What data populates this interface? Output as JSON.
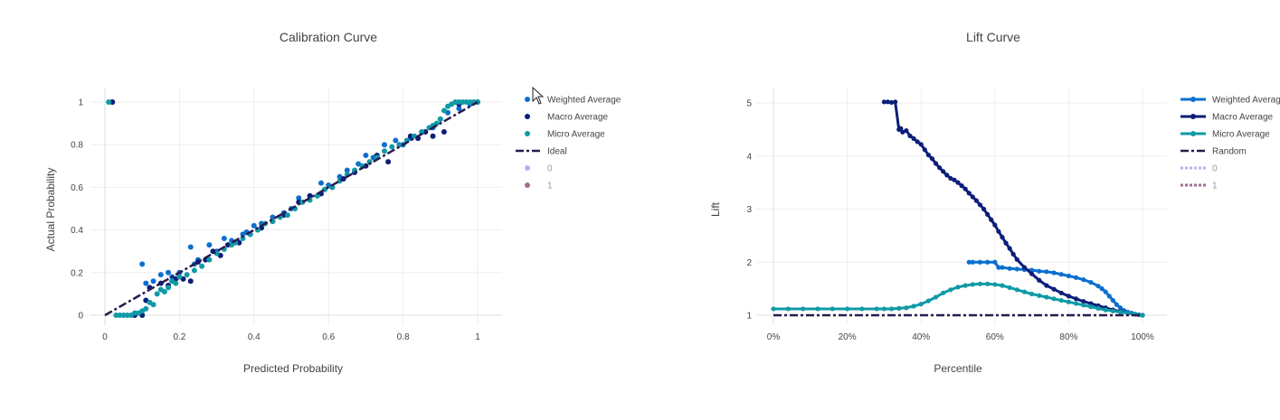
{
  "colors": {
    "weighted": "#0c6fcf",
    "macro": "#0b1e7a",
    "micro": "#0f9aa6",
    "ideal": "#2a1a4d",
    "class0": "#b9b3e8",
    "class1": "#9b6f95"
  },
  "chart_data": [
    {
      "type": "scatter",
      "title": "Calibration Curve",
      "xlabel": "Predicted Probability",
      "ylabel": "Actual Probability",
      "xlim": [
        0,
        1
      ],
      "ylim": [
        0,
        1
      ],
      "xticks": [
        "0",
        "0.2",
        "0.4",
        "0.6",
        "0.8",
        "1"
      ],
      "yticks": [
        "0",
        "0.2",
        "0.4",
        "0.6",
        "0.8",
        "1"
      ],
      "grid": true,
      "legend_position": "right",
      "legend": [
        {
          "label": "Weighted Average",
          "kind": "marker",
          "color": "#0c6fcf"
        },
        {
          "label": "Macro Average",
          "kind": "marker",
          "color": "#0b1e7a"
        },
        {
          "label": "Micro Average",
          "kind": "marker",
          "color": "#0f9aa6"
        },
        {
          "label": "Ideal",
          "kind": "dashdot",
          "color": "#2a1a4d"
        },
        {
          "label": "0",
          "kind": "marker",
          "color": "#b9b3e8",
          "dim": true
        },
        {
          "label": "1",
          "kind": "marker",
          "color": "#9b6f95",
          "dim": true
        }
      ],
      "series": [
        {
          "name": "Weighted Average",
          "mode": "markers",
          "color": "#0c6fcf",
          "x": [
            0.02,
            0.1,
            0.11,
            0.13,
            0.15,
            0.17,
            0.18,
            0.2,
            0.23,
            0.24,
            0.25,
            0.28,
            0.3,
            0.32,
            0.34,
            0.37,
            0.38,
            0.4,
            0.42,
            0.45,
            0.48,
            0.5,
            0.52,
            0.55,
            0.58,
            0.6,
            0.63,
            0.65,
            0.68,
            0.7,
            0.72,
            0.75,
            0.78,
            0.8,
            0.82,
            0.85,
            0.88,
            0.9,
            0.92,
            0.95,
            0.98,
            1.0
          ],
          "y": [
            1.0,
            0.24,
            0.15,
            0.16,
            0.19,
            0.2,
            0.18,
            0.2,
            0.32,
            0.24,
            0.26,
            0.33,
            0.3,
            0.36,
            0.35,
            0.38,
            0.39,
            0.42,
            0.43,
            0.46,
            0.48,
            0.5,
            0.55,
            0.56,
            0.62,
            0.61,
            0.65,
            0.68,
            0.71,
            0.75,
            0.74,
            0.8,
            0.82,
            0.8,
            0.83,
            0.86,
            0.88,
            0.92,
            0.95,
            0.97,
            0.99,
            1.0
          ]
        },
        {
          "name": "Macro Average",
          "mode": "markers",
          "color": "#0b1e7a",
          "x": [
            0.02,
            0.08,
            0.1,
            0.11,
            0.12,
            0.15,
            0.17,
            0.19,
            0.21,
            0.23,
            0.25,
            0.27,
            0.29,
            0.31,
            0.33,
            0.36,
            0.39,
            0.42,
            0.45,
            0.48,
            0.52,
            0.55,
            0.58,
            0.61,
            0.64,
            0.67,
            0.7,
            0.73,
            0.76,
            0.79,
            0.82,
            0.84,
            0.86,
            0.88,
            0.91,
            0.95,
            1.0
          ],
          "y": [
            1.0,
            0.0,
            0.0,
            0.07,
            0.13,
            0.15,
            0.14,
            0.17,
            0.17,
            0.16,
            0.25,
            0.26,
            0.3,
            0.28,
            0.33,
            0.34,
            0.38,
            0.41,
            0.44,
            0.47,
            0.53,
            0.56,
            0.57,
            0.6,
            0.64,
            0.67,
            0.7,
            0.75,
            0.72,
            0.8,
            0.84,
            0.83,
            0.86,
            0.84,
            0.86,
            0.99,
            1.0
          ]
        },
        {
          "name": "Micro Average",
          "mode": "markers",
          "color": "#0f9aa6",
          "x": [
            0.01,
            0.03,
            0.04,
            0.05,
            0.06,
            0.07,
            0.08,
            0.09,
            0.1,
            0.11,
            0.12,
            0.13,
            0.14,
            0.15,
            0.16,
            0.17,
            0.18,
            0.19,
            0.2,
            0.22,
            0.24,
            0.26,
            0.28,
            0.3,
            0.32,
            0.34,
            0.35,
            0.37,
            0.39,
            0.41,
            0.43,
            0.45,
            0.47,
            0.49,
            0.51,
            0.53,
            0.55,
            0.57,
            0.59,
            0.61,
            0.63,
            0.65,
            0.67,
            0.69,
            0.71,
            0.73,
            0.75,
            0.77,
            0.79,
            0.81,
            0.83,
            0.85,
            0.87,
            0.88,
            0.89,
            0.9,
            0.91,
            0.92,
            0.93,
            0.94,
            0.95,
            0.96,
            0.97,
            0.98,
            0.99,
            1.0
          ],
          "y": [
            1.0,
            0.0,
            0.0,
            0.0,
            0.0,
            0.0,
            0.01,
            0.01,
            0.02,
            0.03,
            0.06,
            0.05,
            0.1,
            0.12,
            0.11,
            0.13,
            0.16,
            0.15,
            0.18,
            0.19,
            0.21,
            0.23,
            0.26,
            0.29,
            0.31,
            0.33,
            0.34,
            0.36,
            0.38,
            0.4,
            0.43,
            0.44,
            0.46,
            0.47,
            0.5,
            0.53,
            0.54,
            0.56,
            0.59,
            0.6,
            0.63,
            0.66,
            0.68,
            0.7,
            0.72,
            0.74,
            0.77,
            0.79,
            0.8,
            0.82,
            0.84,
            0.86,
            0.88,
            0.89,
            0.9,
            0.92,
            0.96,
            0.98,
            0.99,
            1.0,
            1.0,
            1.0,
            1.0,
            1.0,
            1.0,
            1.0
          ]
        },
        {
          "name": "Ideal",
          "mode": "lines",
          "dash": "dashdot",
          "color": "#2a1a4d",
          "x": [
            0,
            1
          ],
          "y": [
            0,
            1
          ]
        }
      ]
    },
    {
      "type": "line",
      "title": "Lift Curve",
      "xlabel": "Percentile",
      "ylabel": "Lift",
      "xlim": [
        0,
        100
      ],
      "ylim": [
        0.8,
        5.2
      ],
      "xticks": [
        "0%",
        "20%",
        "40%",
        "60%",
        "80%",
        "100%"
      ],
      "yticks": [
        "1",
        "2",
        "3",
        "4",
        "5"
      ],
      "grid": true,
      "legend_position": "right",
      "legend": [
        {
          "label": "Weighted Average",
          "kind": "line-marker",
          "color": "#0c6fcf"
        },
        {
          "label": "Macro Average",
          "kind": "line-marker",
          "color": "#0b1e7a"
        },
        {
          "label": "Micro Average",
          "kind": "line-marker",
          "color": "#0f9aa6"
        },
        {
          "label": "Random",
          "kind": "dashdot",
          "color": "#2a1a4d"
        },
        {
          "label": "0",
          "kind": "dotted",
          "color": "#b9b3e8",
          "dim": true
        },
        {
          "label": "1",
          "kind": "dotted",
          "color": "#9b6f95",
          "dim": true
        }
      ],
      "series": [
        {
          "name": "Weighted Average",
          "mode": "lines+markers",
          "color": "#0c6fcf",
          "x": [
            53,
            54,
            56,
            58,
            60,
            61,
            62,
            64,
            66,
            68,
            70,
            72,
            74,
            76,
            78,
            80,
            82,
            84,
            86,
            88,
            89,
            90,
            91,
            92,
            93,
            94,
            95,
            96,
            97,
            98,
            99,
            100
          ],
          "y": [
            2.0,
            2.0,
            2.0,
            2.0,
            2.0,
            1.9,
            1.9,
            1.88,
            1.87,
            1.86,
            1.85,
            1.83,
            1.82,
            1.8,
            1.77,
            1.74,
            1.71,
            1.67,
            1.62,
            1.55,
            1.5,
            1.44,
            1.36,
            1.28,
            1.2,
            1.14,
            1.09,
            1.06,
            1.04,
            1.02,
            1.01,
            1.0
          ]
        },
        {
          "name": "Macro Average",
          "mode": "lines+markers",
          "color": "#0b1e7a",
          "x": [
            30,
            31,
            32,
            33,
            34,
            34.5,
            35,
            36,
            37,
            38,
            39,
            40,
            41,
            42,
            43,
            44,
            45,
            46,
            47,
            48,
            49,
            50,
            51,
            52,
            53,
            54,
            55,
            56,
            57,
            58,
            59,
            60,
            61,
            62,
            63,
            64,
            65,
            66,
            68,
            70,
            72,
            74,
            76,
            78,
            80,
            82,
            84,
            86,
            88,
            90,
            92,
            94,
            96,
            98,
            100
          ],
          "y": [
            5.02,
            5.02,
            5.01,
            5.02,
            4.5,
            4.52,
            4.45,
            4.48,
            4.38,
            4.33,
            4.27,
            4.22,
            4.12,
            4.02,
            3.95,
            3.86,
            3.78,
            3.71,
            3.64,
            3.58,
            3.55,
            3.5,
            3.44,
            3.38,
            3.3,
            3.23,
            3.16,
            3.08,
            3.0,
            2.9,
            2.8,
            2.7,
            2.58,
            2.47,
            2.36,
            2.26,
            2.15,
            2.05,
            1.9,
            1.78,
            1.66,
            1.56,
            1.49,
            1.42,
            1.36,
            1.31,
            1.26,
            1.22,
            1.18,
            1.14,
            1.1,
            1.07,
            1.04,
            1.02,
            1.0
          ]
        },
        {
          "name": "Micro Average",
          "mode": "lines+markers",
          "color": "#0f9aa6",
          "x": [
            0,
            4,
            8,
            12,
            16,
            20,
            24,
            28,
            30,
            32,
            34,
            36,
            38,
            40,
            42,
            44,
            46,
            48,
            50,
            52,
            54,
            56,
            58,
            60,
            62,
            64,
            66,
            68,
            70,
            72,
            74,
            76,
            78,
            80,
            82,
            84,
            86,
            88,
            90,
            92,
            94,
            96,
            98,
            100
          ],
          "y": [
            1.12,
            1.12,
            1.12,
            1.12,
            1.12,
            1.12,
            1.12,
            1.12,
            1.12,
            1.12,
            1.13,
            1.14,
            1.17,
            1.21,
            1.27,
            1.34,
            1.42,
            1.48,
            1.53,
            1.56,
            1.58,
            1.59,
            1.59,
            1.58,
            1.56,
            1.52,
            1.48,
            1.44,
            1.4,
            1.37,
            1.34,
            1.31,
            1.28,
            1.25,
            1.22,
            1.19,
            1.16,
            1.13,
            1.1,
            1.08,
            1.06,
            1.04,
            1.02,
            1.0
          ]
        },
        {
          "name": "Random",
          "mode": "lines",
          "dash": "dashdot",
          "color": "#2a1a4d",
          "x": [
            0,
            100
          ],
          "y": [
            1,
            1
          ]
        }
      ]
    }
  ]
}
